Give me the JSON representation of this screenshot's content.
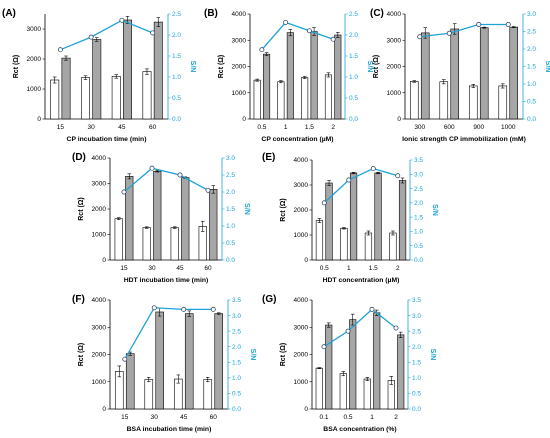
{
  "colors": {
    "line": "#1ba3d9",
    "bar_white": "#ffffff",
    "bar_gray": "#a6a6a6",
    "axis": "#000000"
  },
  "chart_data": [
    {
      "panel_label": "(A)",
      "type": "bar",
      "xlabel": "CP incubation time (min)",
      "ylabel": "Rct (Ω)",
      "y2label": "S/N",
      "categories": [
        "15",
        "30",
        "45",
        "60"
      ],
      "ylim": [
        0,
        3500
      ],
      "yticks": [
        "0",
        "1000",
        "2000",
        "3000"
      ],
      "ytick_values": [
        0,
        1000,
        2000,
        3000
      ],
      "y2lim": [
        0,
        2.5
      ],
      "y2ticks": [
        "0.0",
        "0.5",
        "1.0",
        "1.5",
        "2.0",
        "2.5"
      ],
      "y2tick_values": [
        0,
        0.5,
        1,
        1.5,
        2,
        2.5
      ],
      "series": [
        {
          "values": [
            1300,
            1380,
            1420,
            1580
          ],
          "errors": [
            100,
            60,
            60,
            90
          ]
        },
        {
          "values": [
            2030,
            2650,
            3300,
            3230
          ],
          "errors": [
            70,
            60,
            120,
            150
          ]
        },
        {
          "values": [
            1.65,
            1.95,
            2.35,
            2.05
          ]
        }
      ]
    },
    {
      "panel_label": "(B)",
      "type": "bar",
      "xlabel": "CP concentration (µM)",
      "ylabel": "Rct (Ω)",
      "y2label": "S/N",
      "categories": [
        "0.5",
        "1",
        "1.5",
        "2"
      ],
      "ylim": [
        0,
        4000
      ],
      "yticks": [
        "0",
        "1000",
        "2000",
        "3000",
        "4000"
      ],
      "ytick_values": [
        0,
        1000,
        2000,
        3000,
        4000
      ],
      "y2lim": [
        0,
        2.5
      ],
      "y2ticks": [
        "0.0",
        "0.5",
        "1.0",
        "1.5",
        "2.0",
        "2.5"
      ],
      "y2tick_values": [
        0,
        0.5,
        1,
        1.5,
        2,
        2.5
      ],
      "series": [
        {
          "values": [
            1480,
            1420,
            1580,
            1680
          ],
          "errors": [
            40,
            40,
            40,
            80
          ]
        },
        {
          "values": [
            2470,
            3290,
            3330,
            3200
          ],
          "errors": [
            60,
            120,
            150,
            100
          ]
        },
        {
          "values": [
            1.65,
            2.3,
            2.1,
            1.9
          ]
        }
      ]
    },
    {
      "panel_label": "(C)",
      "type": "bar",
      "xlabel": "Ionic strength CP immobilization (mM)",
      "ylabel": "Rct (Ω)",
      "y2label": "S/N",
      "categories": [
        "300",
        "600",
        "900",
        "1000"
      ],
      "ylim": [
        0,
        4000
      ],
      "yticks": [
        "0",
        "1000",
        "2000",
        "3000",
        "4000"
      ],
      "ytick_values": [
        0,
        1000,
        2000,
        3000,
        4000
      ],
      "y2lim": [
        0,
        3
      ],
      "y2ticks": [
        "0.0",
        "0.5",
        "1.0",
        "1.5",
        "2.0",
        "2.5",
        "3.0"
      ],
      "y2tick_values": [
        0,
        0.5,
        1,
        1.5,
        2,
        2.5,
        3
      ],
      "series": [
        {
          "values": [
            1430,
            1420,
            1260,
            1260
          ],
          "errors": [
            30,
            80,
            60,
            80
          ]
        },
        {
          "values": [
            3280,
            3430,
            3480,
            3500
          ],
          "errors": [
            200,
            200,
            20,
            20
          ]
        },
        {
          "values": [
            2.35,
            2.45,
            2.7,
            2.7
          ]
        }
      ]
    },
    {
      "panel_label": "(D)",
      "type": "bar",
      "xlabel": "HDT incubation time (min)",
      "ylabel": "Rct (Ω)",
      "y2label": "S/N",
      "categories": [
        "15",
        "30",
        "45",
        "60"
      ],
      "ylim": [
        0,
        4000
      ],
      "yticks": [
        "0",
        "1000",
        "2000",
        "3000",
        "4000"
      ],
      "ytick_values": [
        0,
        1000,
        2000,
        3000,
        4000
      ],
      "y2lim": [
        0,
        3
      ],
      "y2ticks": [
        "0.0",
        "0.5",
        "1.0",
        "1.5",
        "2.0",
        "2.5",
        "3.0"
      ],
      "y2tick_values": [
        0,
        0.5,
        1,
        1.5,
        2,
        2.5,
        3
      ],
      "series": [
        {
          "values": [
            1620,
            1270,
            1270,
            1320
          ],
          "errors": [
            40,
            30,
            30,
            200
          ]
        },
        {
          "values": [
            3280,
            3480,
            3230,
            2770
          ],
          "errors": [
            100,
            30,
            30,
            150
          ]
        },
        {
          "values": [
            2.0,
            2.7,
            2.5,
            2.05
          ]
        }
      ]
    },
    {
      "panel_label": "(E)",
      "type": "bar",
      "xlabel": "HDT concentration (µM)",
      "ylabel": "Rct (Ω)",
      "y2label": "S/N",
      "categories": [
        "0.5",
        "1",
        "1.5",
        "2"
      ],
      "ylim": [
        0,
        4000
      ],
      "yticks": [
        "0",
        "1000",
        "2000",
        "3000",
        "4000"
      ],
      "ytick_values": [
        0,
        1000,
        2000,
        3000,
        4000
      ],
      "y2lim": [
        0,
        3.5
      ],
      "y2ticks": [
        "0.0",
        "0.5",
        "1.0",
        "1.5",
        "2.0",
        "2.5",
        "3.0",
        "3.5"
      ],
      "y2tick_values": [
        0,
        0.5,
        1,
        1.5,
        2,
        2.5,
        3,
        3.5
      ],
      "series": [
        {
          "values": [
            1580,
            1270,
            1080,
            1080
          ],
          "errors": [
            80,
            30,
            80,
            80
          ]
        },
        {
          "values": [
            3080,
            3480,
            3480,
            3180
          ],
          "errors": [
            100,
            30,
            30,
            100
          ]
        },
        {
          "values": [
            2.0,
            2.8,
            3.2,
            2.95
          ]
        }
      ]
    },
    {
      "panel_label": "(F)",
      "type": "bar",
      "xlabel": "BSA incubation time (min)",
      "ylabel": "Rct (Ω)",
      "y2label": "S/N",
      "categories": [
        "15",
        "30",
        "45",
        "60"
      ],
      "ylim": [
        0,
        4000
      ],
      "yticks": [
        "0",
        "1000",
        "2000",
        "3000",
        "4000"
      ],
      "ytick_values": [
        0,
        1000,
        2000,
        3000,
        4000
      ],
      "y2lim": [
        0,
        3.5
      ],
      "y2ticks": [
        "0.0",
        "0.5",
        "1.0",
        "1.5",
        "2.0",
        "2.5",
        "3.0",
        "3.5"
      ],
      "y2tick_values": [
        0,
        0.5,
        1,
        1.5,
        2,
        2.5,
        3,
        3.5
      ],
      "series": [
        {
          "values": [
            1380,
            1080,
            1100,
            1080
          ],
          "errors": [
            200,
            80,
            150,
            80
          ]
        },
        {
          "values": [
            2030,
            3560,
            3500,
            3500
          ],
          "errors": [
            60,
            150,
            100,
            30
          ]
        },
        {
          "values": [
            1.6,
            3.25,
            3.2,
            3.2
          ]
        }
      ]
    },
    {
      "panel_label": "(G)",
      "type": "bar",
      "xlabel": "BSA concentration (%)",
      "ylabel": "Rct (Ω)",
      "y2label": "S/N",
      "categories": [
        "0.1",
        "0.5",
        "1",
        "2"
      ],
      "ylim": [
        0,
        4000
      ],
      "yticks": [
        "0",
        "1000",
        "2000",
        "3000",
        "4000"
      ],
      "ytick_values": [
        0,
        1000,
        2000,
        3000,
        4000
      ],
      "y2lim": [
        0,
        3.5
      ],
      "y2ticks": [
        "0.0",
        "0.5",
        "1.0",
        "1.5",
        "2.0",
        "2.5",
        "3.0",
        "3.5"
      ],
      "y2tick_values": [
        0,
        0.5,
        1,
        1.5,
        2,
        2.5,
        3,
        3.5
      ],
      "series": [
        {
          "values": [
            1500,
            1300,
            1100,
            1050
          ],
          "errors": [
            20,
            80,
            60,
            150
          ]
        },
        {
          "values": [
            3080,
            3280,
            3530,
            2720
          ],
          "errors": [
            80,
            200,
            100,
            100
          ]
        },
        {
          "values": [
            2.0,
            2.5,
            3.2,
            2.6
          ]
        }
      ]
    }
  ]
}
